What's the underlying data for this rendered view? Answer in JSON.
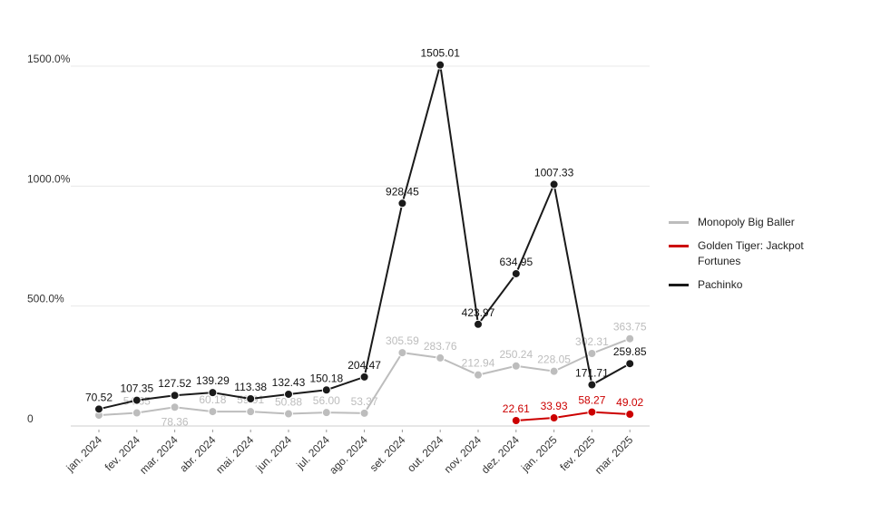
{
  "chart_data": {
    "type": "line",
    "title": "",
    "xlabel": "",
    "ylabel": "",
    "ylim": [
      0,
      1500
    ],
    "y_ticks": [
      {
        "value": 0,
        "label": "0"
      },
      {
        "value": 500,
        "label": "500.0%"
      },
      {
        "value": 1000,
        "label": "1000.0%"
      },
      {
        "value": 1500,
        "label": "1500.0%"
      }
    ],
    "categories": [
      "jan. 2024",
      "fev. 2024",
      "mar. 2024",
      "abr. 2024",
      "mai. 2024",
      "jun. 2024",
      "jul. 2024",
      "ago. 2024",
      "set. 2024",
      "out. 2024",
      "nov. 2024",
      "dez. 2024",
      "jan. 2025",
      "fev. 2025",
      "mar. 2025"
    ],
    "legend_position": "right",
    "series": [
      {
        "name": "Monopoly Big Baller",
        "color": "#bdbdbd",
        "values": [
          45,
          54.65,
          78.36,
          60.18,
          59.91,
          50.88,
          56.0,
          53.37,
          305.59,
          283.76,
          212.94,
          250.24,
          228.05,
          302.31,
          363.75
        ],
        "labels": [
          null,
          "54.65",
          "78.36",
          "60.18",
          "59.91",
          "50.88",
          "56.00",
          "53.37",
          "305.59",
          "283.76",
          "212.94",
          "250.24",
          "228.05",
          "302.31",
          "363.75"
        ]
      },
      {
        "name": "Golden Tiger: Jackpot Fortunes",
        "color": "#cc0000",
        "values": [
          null,
          null,
          null,
          null,
          null,
          null,
          null,
          null,
          null,
          null,
          null,
          22.61,
          33.93,
          58.27,
          49.02
        ],
        "labels": [
          null,
          null,
          null,
          null,
          null,
          null,
          null,
          null,
          null,
          null,
          null,
          "22.61",
          "33.93",
          "58.27",
          "49.02"
        ]
      },
      {
        "name": "Pachinko",
        "color": "#1a1a1a",
        "values": [
          70.52,
          107.35,
          127.52,
          139.29,
          113.38,
          132.43,
          150.18,
          204.47,
          928.45,
          1505.01,
          423.97,
          634.95,
          1007.33,
          171.71,
          259.85
        ],
        "labels": [
          "70.52",
          "107.35",
          "127.52",
          "139.29",
          "113.38",
          "132.43",
          "150.18",
          "204.47",
          "928.45",
          "1505.01",
          "423.97",
          "634.95",
          "1007.33",
          "171.71",
          "259.85"
        ]
      }
    ]
  }
}
